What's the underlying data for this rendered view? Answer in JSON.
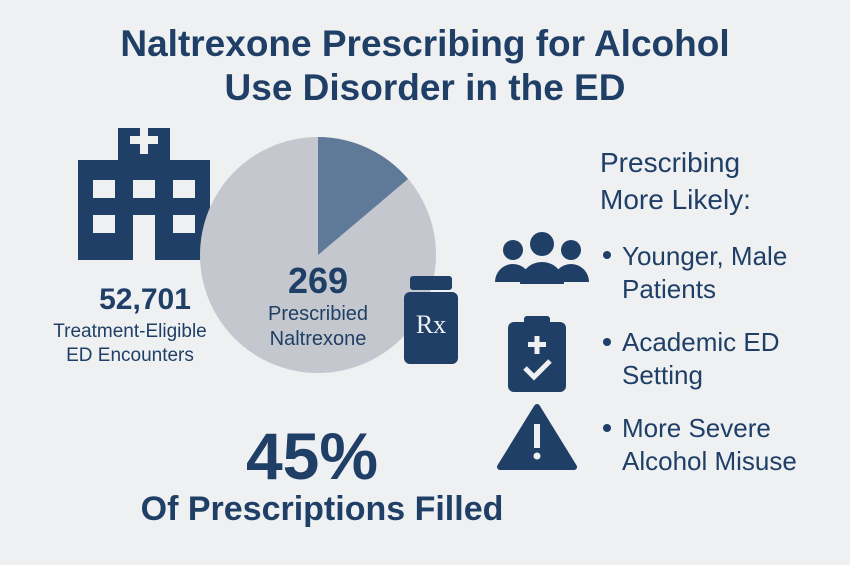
{
  "header": {
    "title_lines": [
      "Naltrexone Prescribing for Alcohol",
      "Use Disorder in the ED"
    ]
  },
  "encounters": {
    "number": "52,701",
    "label_lines": [
      "Treatment-Eligible",
      "ED Encounters"
    ]
  },
  "prescribed": {
    "number": "269",
    "label_lines": [
      "Prescribied",
      "Naltrexone"
    ]
  },
  "rx_icon": "Rx",
  "filled": {
    "number": "45%",
    "label": "Of Prescriptions Filled"
  },
  "factors": {
    "heading_lines": [
      "Prescribing",
      "More Likely:"
    ],
    "items": [
      {
        "lines": [
          "Younger, Male",
          "Patients"
        ]
      },
      {
        "lines": [
          "Academic ED",
          "Setting"
        ]
      },
      {
        "lines": [
          "More Severe",
          "Alcohol Misuse"
        ]
      }
    ]
  }
}
